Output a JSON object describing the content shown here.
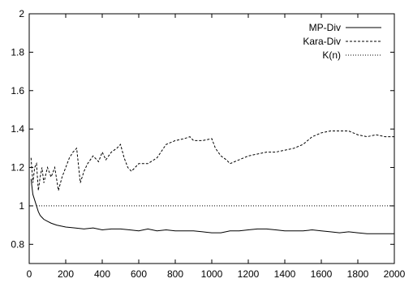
{
  "chart_data": {
    "type": "line",
    "title": "",
    "xlabel": "",
    "ylabel": "",
    "xlim": [
      0,
      2000
    ],
    "ylim": [
      0.7,
      2.0
    ],
    "xticks": [
      0,
      200,
      400,
      600,
      800,
      1000,
      1200,
      1400,
      1600,
      1800,
      2000
    ],
    "yticks": [
      0.8,
      1,
      1.2,
      1.4,
      1.6,
      1.8,
      2
    ],
    "ytick_labels": [
      "0.8",
      "1",
      "1.2",
      "1.4",
      "1.6",
      "1.8",
      "2"
    ],
    "grid": false,
    "legend": "top-right",
    "series": [
      {
        "name": "MP-Div",
        "style": "solid",
        "x": [
          10,
          20,
          30,
          40,
          50,
          60,
          70,
          80,
          100,
          120,
          150,
          200,
          250,
          300,
          350,
          400,
          450,
          500,
          550,
          600,
          650,
          700,
          750,
          800,
          850,
          900,
          950,
          1000,
          1050,
          1100,
          1150,
          1200,
          1250,
          1300,
          1350,
          1400,
          1450,
          1500,
          1550,
          1600,
          1650,
          1700,
          1750,
          1800,
          1850,
          1900,
          1950,
          2000
        ],
        "y": [
          1.14,
          1.06,
          1.03,
          1.0,
          0.97,
          0.95,
          0.94,
          0.93,
          0.92,
          0.91,
          0.9,
          0.89,
          0.885,
          0.88,
          0.885,
          0.875,
          0.88,
          0.88,
          0.875,
          0.87,
          0.88,
          0.87,
          0.875,
          0.87,
          0.87,
          0.87,
          0.865,
          0.86,
          0.86,
          0.87,
          0.87,
          0.875,
          0.88,
          0.88,
          0.875,
          0.87,
          0.87,
          0.87,
          0.875,
          0.87,
          0.865,
          0.86,
          0.865,
          0.86,
          0.855,
          0.855,
          0.855,
          0.855
        ]
      },
      {
        "name": "Kara-Div",
        "style": "dashed",
        "x": [
          10,
          20,
          30,
          40,
          50,
          60,
          70,
          80,
          100,
          120,
          140,
          160,
          180,
          200,
          220,
          240,
          260,
          280,
          300,
          320,
          350,
          380,
          400,
          420,
          450,
          480,
          500,
          520,
          540,
          560,
          600,
          650,
          700,
          750,
          800,
          850,
          880,
          900,
          950,
          1000,
          1020,
          1050,
          1080,
          1100,
          1150,
          1200,
          1250,
          1300,
          1350,
          1400,
          1450,
          1500,
          1550,
          1600,
          1650,
          1700,
          1750,
          1800,
          1850,
          1900,
          1950,
          2000
        ],
        "y": [
          1.25,
          1.12,
          1.2,
          1.22,
          1.08,
          1.15,
          1.2,
          1.12,
          1.2,
          1.15,
          1.2,
          1.08,
          1.15,
          1.2,
          1.25,
          1.28,
          1.3,
          1.12,
          1.18,
          1.22,
          1.26,
          1.23,
          1.28,
          1.24,
          1.28,
          1.3,
          1.32,
          1.25,
          1.2,
          1.18,
          1.22,
          1.22,
          1.25,
          1.32,
          1.34,
          1.35,
          1.36,
          1.34,
          1.34,
          1.35,
          1.3,
          1.26,
          1.24,
          1.22,
          1.24,
          1.26,
          1.27,
          1.28,
          1.28,
          1.29,
          1.3,
          1.32,
          1.36,
          1.38,
          1.39,
          1.39,
          1.39,
          1.37,
          1.36,
          1.37,
          1.36,
          1.36
        ]
      },
      {
        "name": "K(n)",
        "style": "dotted",
        "x": [
          40,
          2000
        ],
        "y": [
          1.0,
          1.0
        ]
      }
    ]
  }
}
